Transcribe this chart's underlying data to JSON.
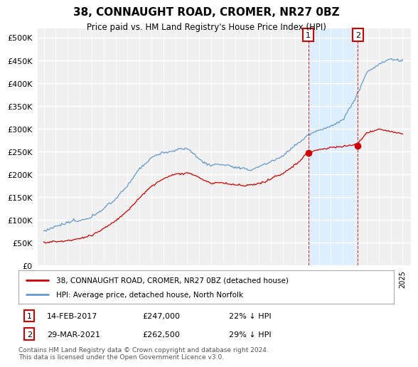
{
  "title": "38, CONNAUGHT ROAD, CROMER, NR27 0BZ",
  "subtitle": "Price paid vs. HM Land Registry's House Price Index (HPI)",
  "legend_line1": "38, CONNAUGHT ROAD, CROMER, NR27 0BZ (detached house)",
  "legend_line2": "HPI: Average price, detached house, North Norfolk",
  "annotation1": {
    "label": "1",
    "date": "14-FEB-2017",
    "price": "£247,000",
    "pct": "22% ↓ HPI",
    "x_year": 2017.12
  },
  "annotation2": {
    "label": "2",
    "date": "29-MAR-2021",
    "price": "£262,500",
    "pct": "29% ↓ HPI",
    "x_year": 2021.25
  },
  "footer": "Contains HM Land Registry data © Crown copyright and database right 2024.\nThis data is licensed under the Open Government Licence v3.0.",
  "hpi_color": "#6699cc",
  "price_color": "#cc0000",
  "shade_color": "#ddeeff",
  "ylim": [
    0,
    520000
  ],
  "yticks": [
    0,
    50000,
    100000,
    150000,
    200000,
    250000,
    300000,
    350000,
    400000,
    450000,
    500000
  ],
  "xlim_start": 1994.5,
  "xlim_end": 2025.7
}
